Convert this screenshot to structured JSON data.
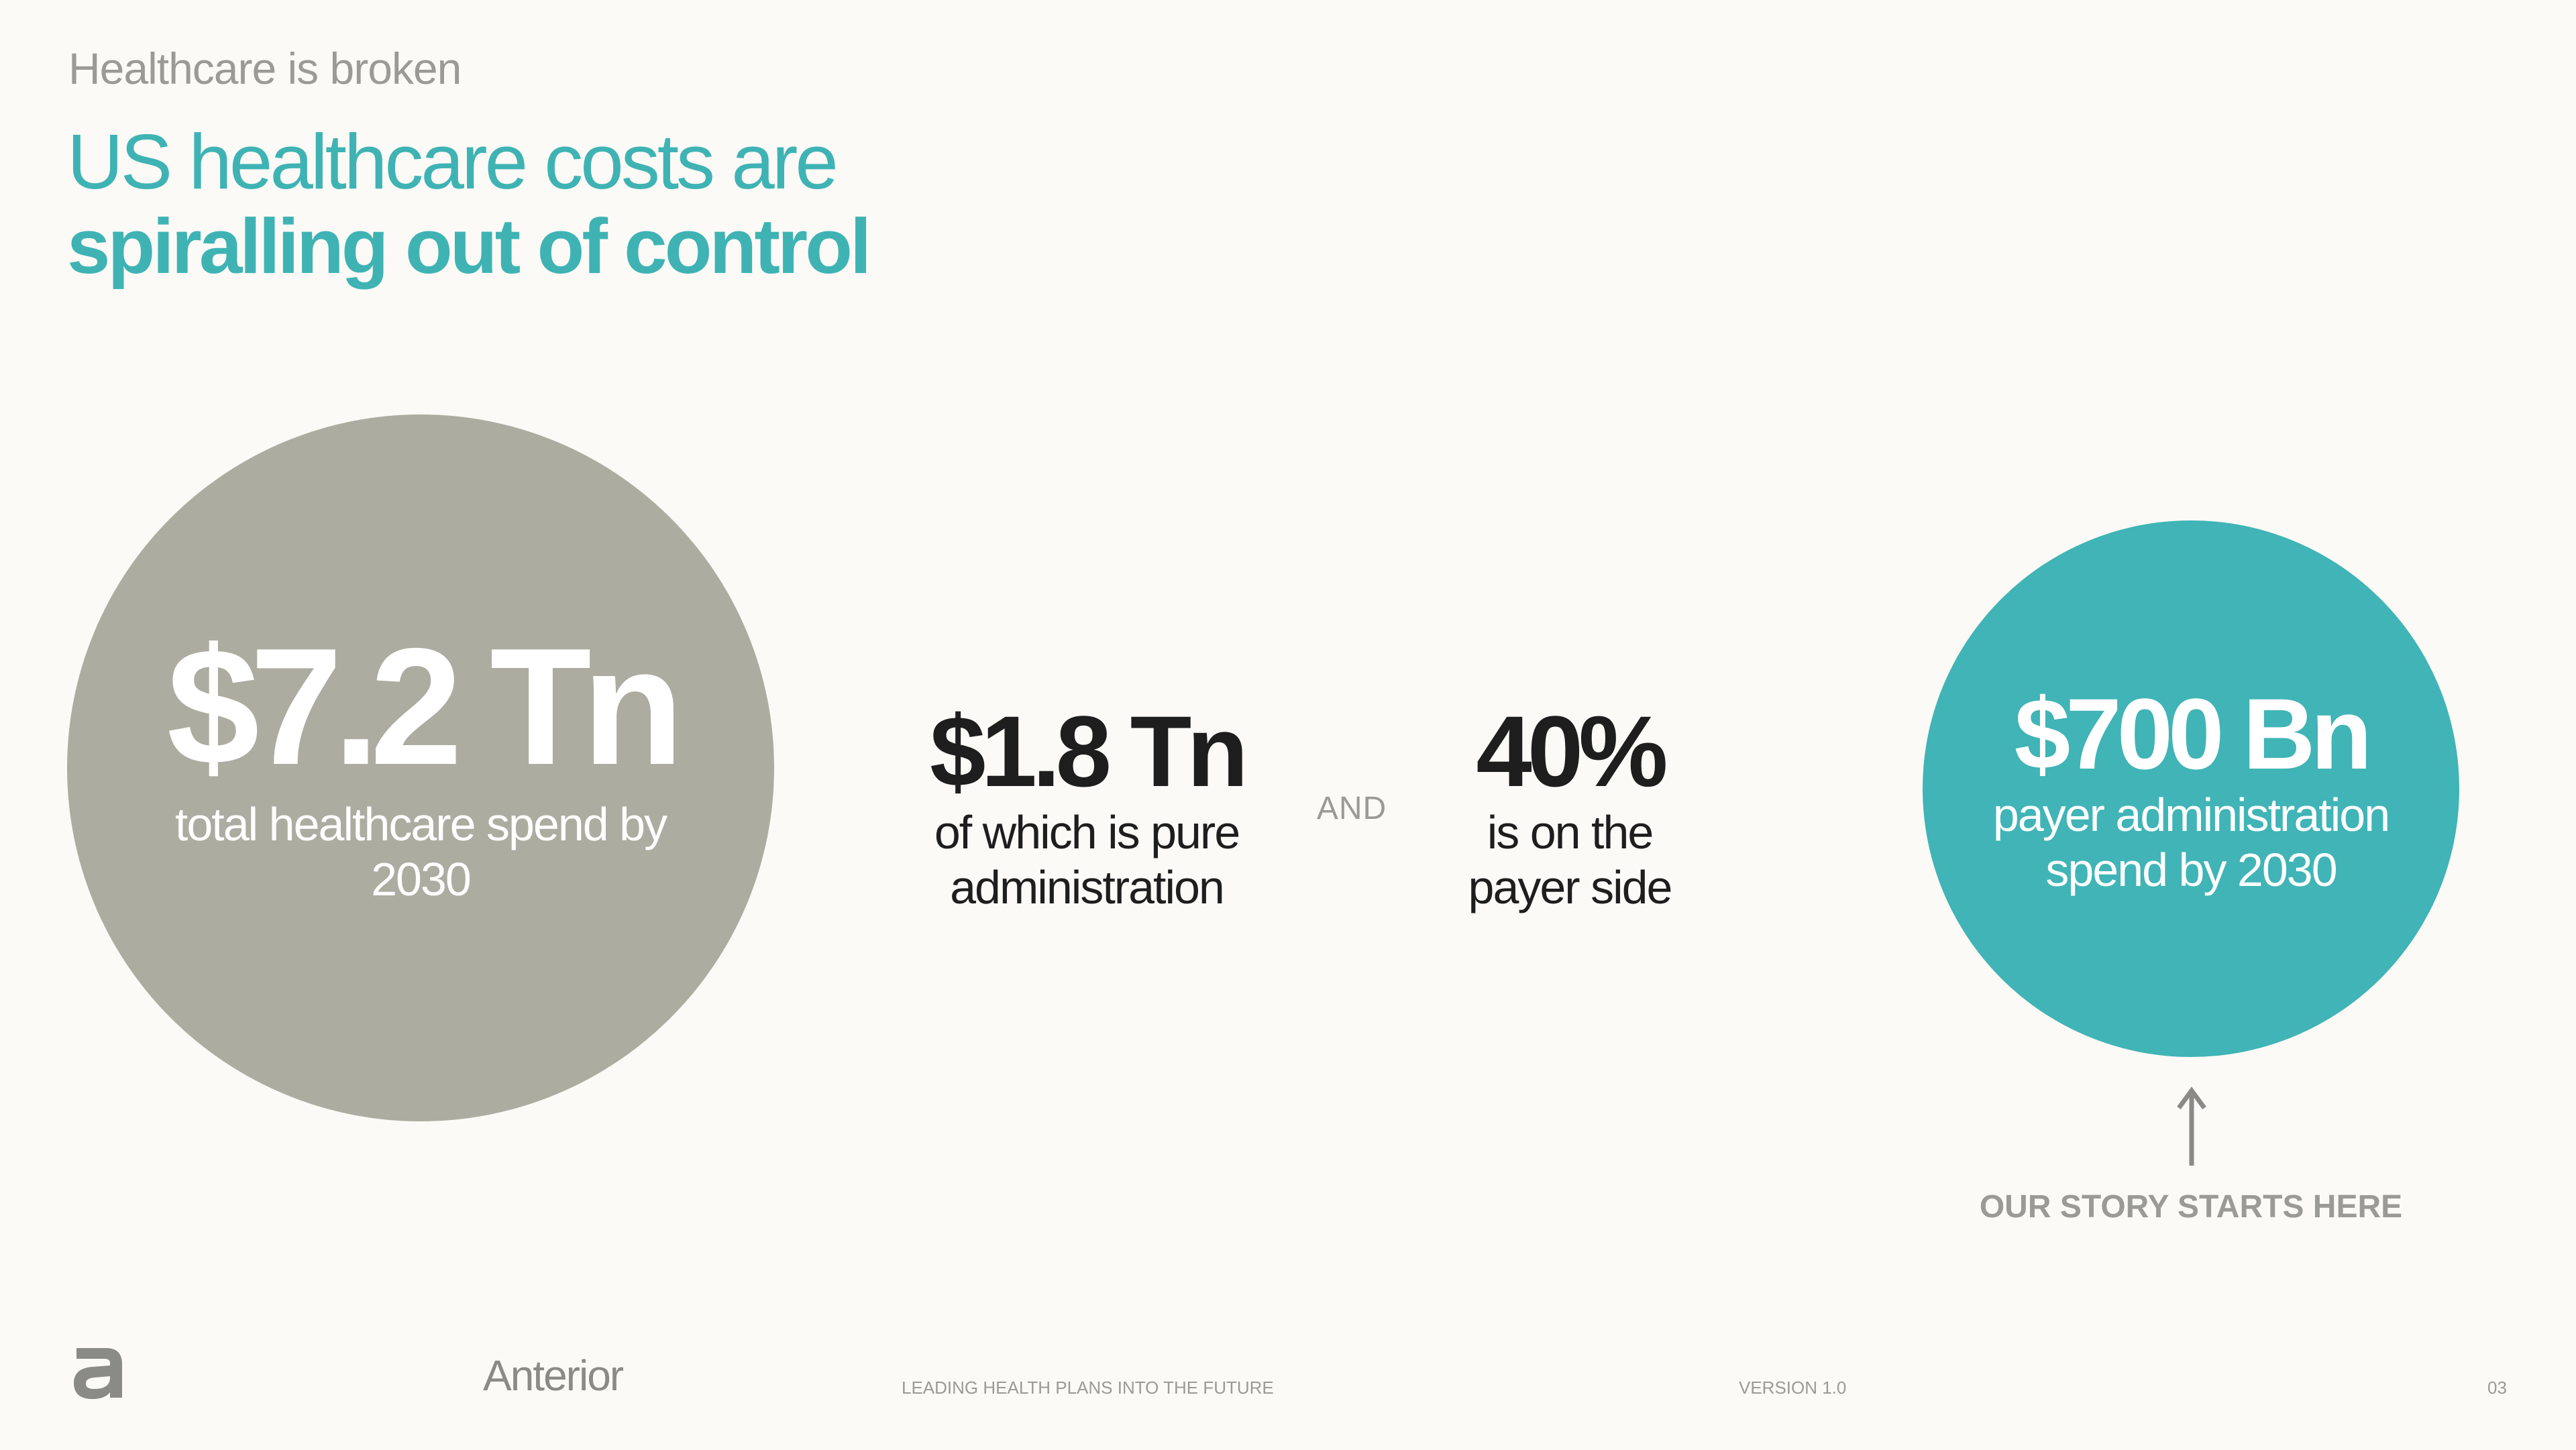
{
  "slide": {
    "eyebrow": "Healthcare is broken",
    "headline": {
      "line1": "US healthcare costs are",
      "line2": "spiralling out of control"
    }
  },
  "stats": {
    "total": {
      "value": "$7.2 Tn",
      "label": "total healthcare spend by 2030",
      "color": "#adaca1"
    },
    "admin": {
      "value": "$1.8 Tn",
      "label": "of which is pure administration"
    },
    "connector": "AND",
    "payer_share": {
      "value": "40%",
      "label": "is on the payer side"
    },
    "payer_admin": {
      "value": "$700 Bn",
      "label": "payer administration spend by 2030",
      "color": "#40b4b6"
    }
  },
  "callout": {
    "icon": "arrow-up-icon",
    "label": "OUR STORY STARTS HERE"
  },
  "footer": {
    "logo_icon": "anterior-logo-icon",
    "brand": "Anterior",
    "tagline": "LEADING HEALTH PLANS INTO THE FUTURE",
    "version": "VERSION 1.0",
    "page": "03"
  },
  "colors": {
    "accent": "#3fb3b4",
    "background": "#fbfaf6",
    "muted": "#9a9a97"
  }
}
